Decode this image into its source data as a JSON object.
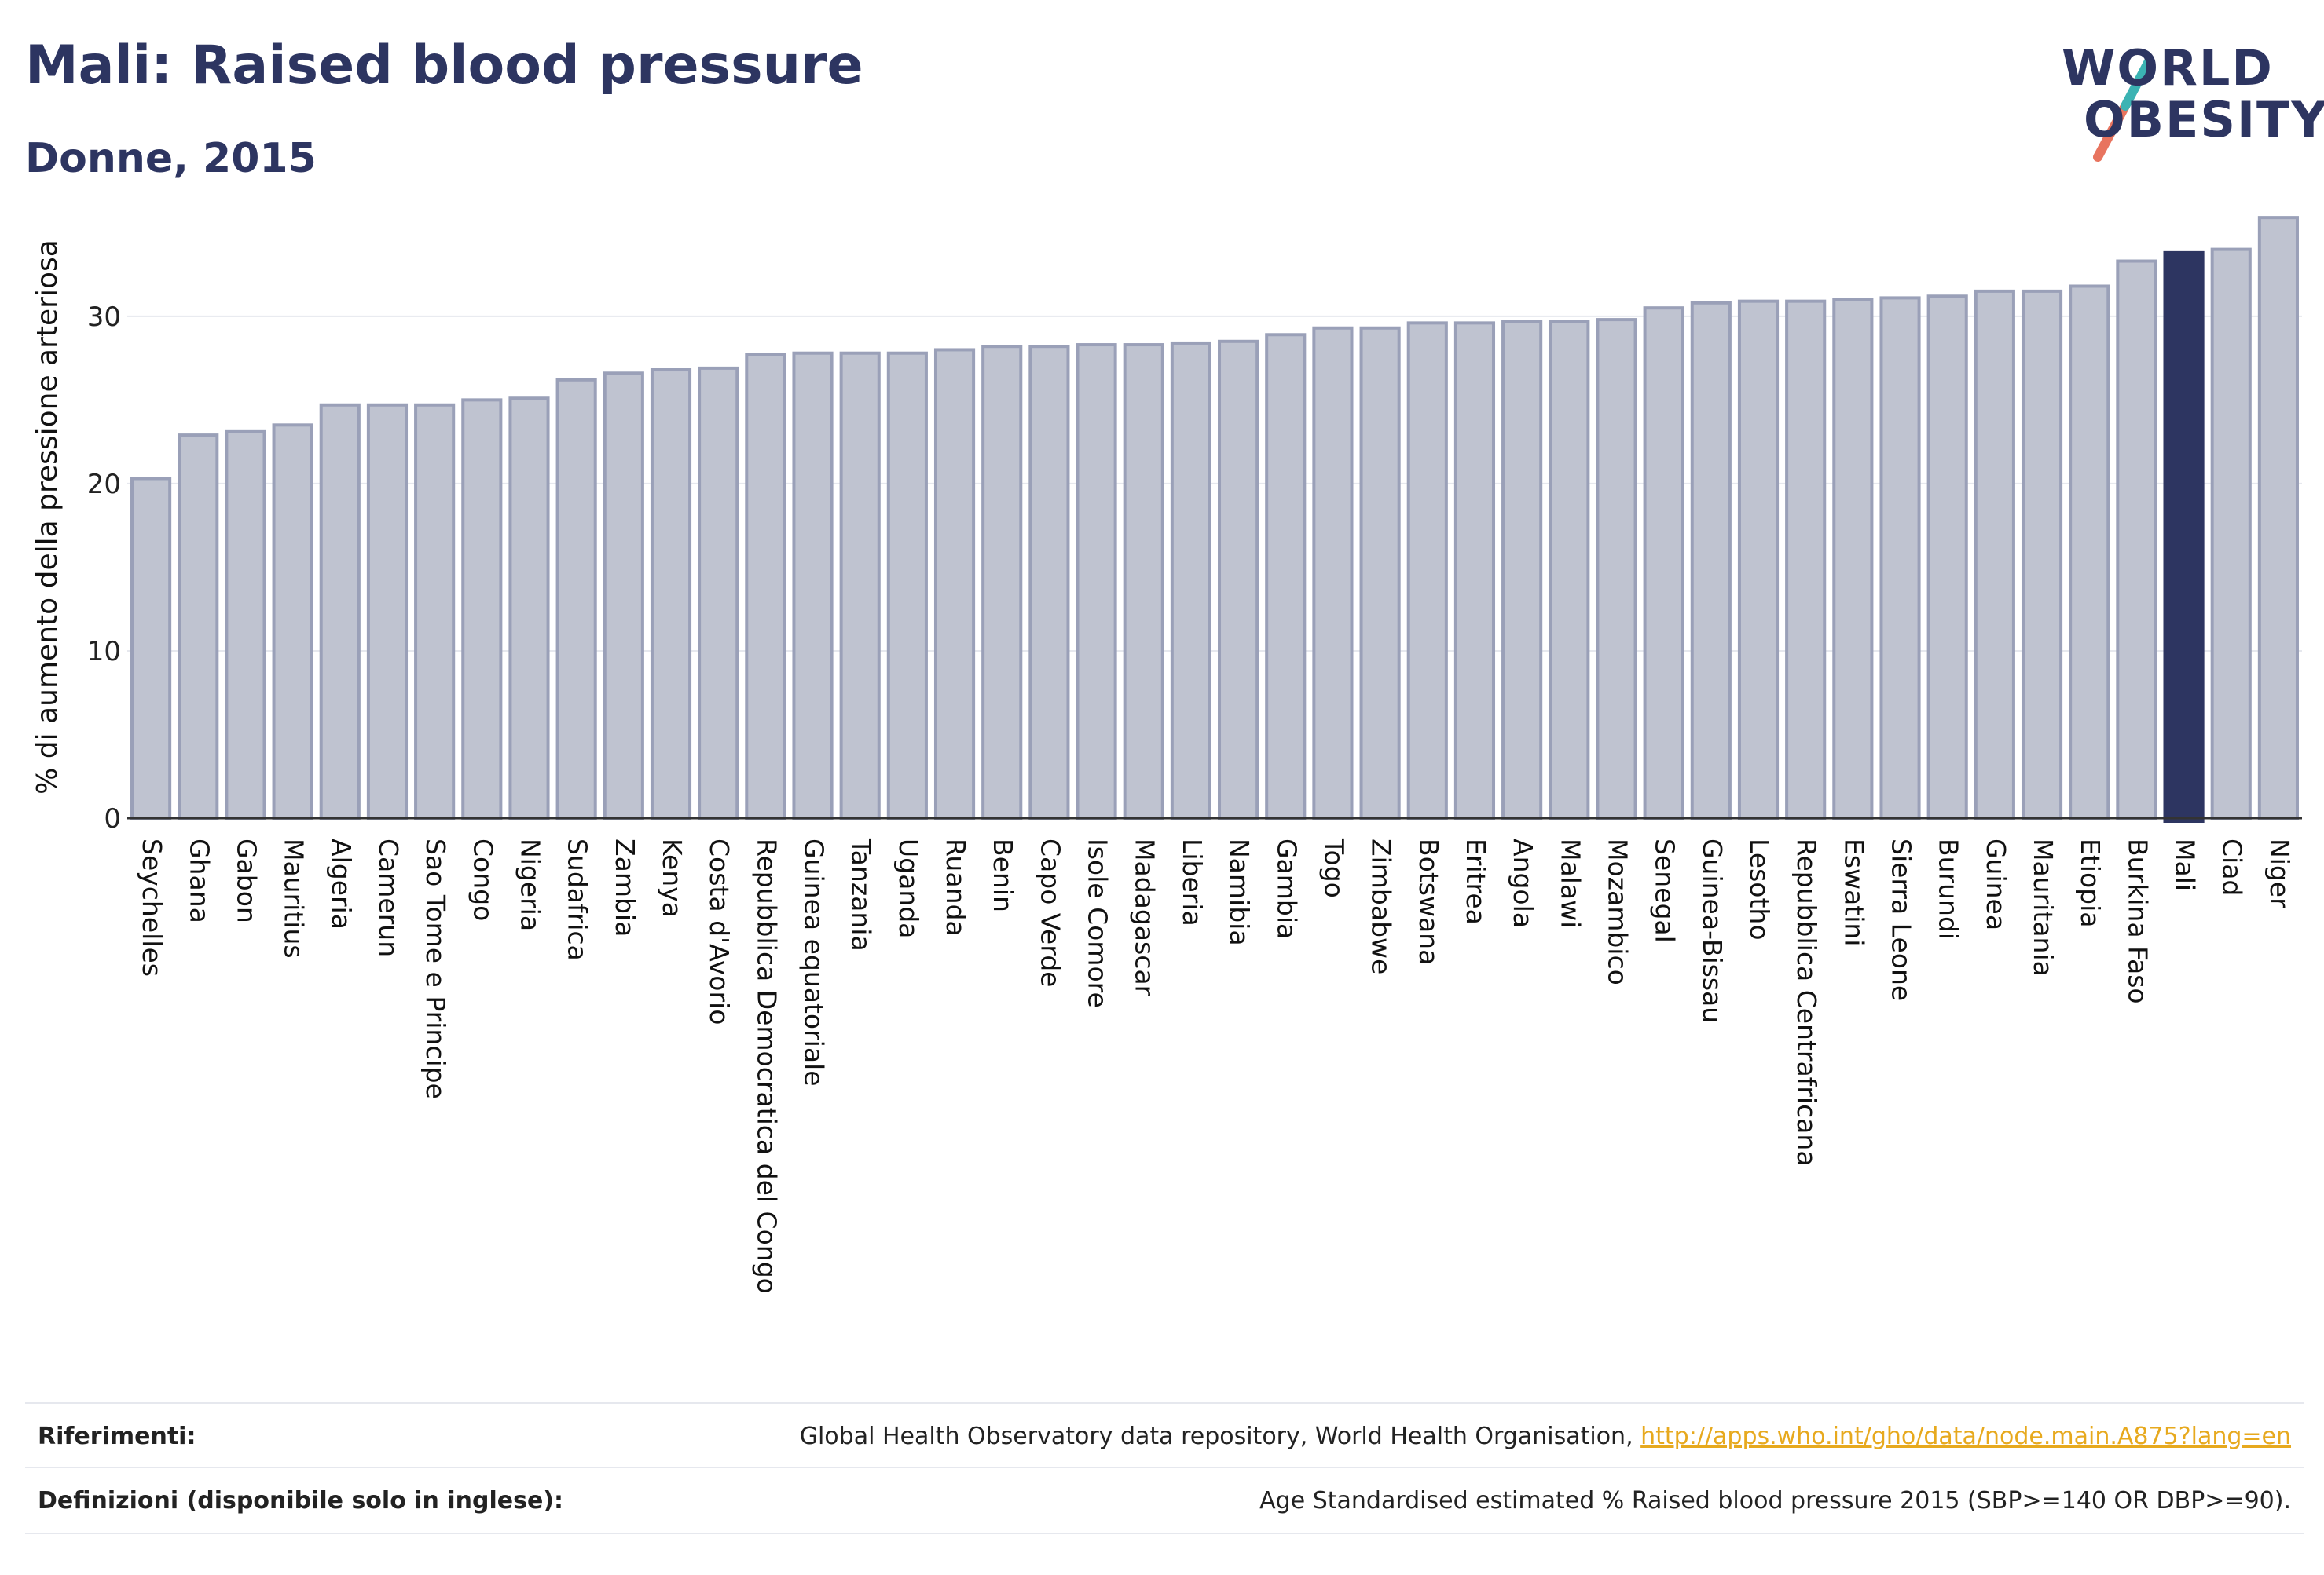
{
  "title": "Mali: Raised blood pressure",
  "subtitle": "Donne, 2015",
  "logo": {
    "line1": "WORLD",
    "line2": "OBESITY"
  },
  "colors": {
    "bar": "#bfc3d0",
    "bar_stroke": "#9aa0b8",
    "highlight": "#2d3561",
    "title": "#2d3561",
    "link": "#e7a91e"
  },
  "chart_data": {
    "type": "bar",
    "title": "Mali: Raised blood pressure",
    "subtitle": "Donne, 2015",
    "ylabel": "% di aumento della pressione arteriosa",
    "ylim": [
      0,
      36
    ],
    "yticks": [
      0,
      10,
      20,
      30
    ],
    "grid": true,
    "highlight": "Mali",
    "categories": [
      "Seychelles",
      "Ghana",
      "Gabon",
      "Mauritius",
      "Algeria",
      "Camerun",
      "Sao Tome e Principe",
      "Congo",
      "Nigeria",
      "Sudafrica",
      "Zambia",
      "Kenya",
      "Costa d'Avorio",
      "Repubblica Democratica del Congo",
      "Guinea equatoriale",
      "Tanzania",
      "Uganda",
      "Ruanda",
      "Benin",
      "Capo Verde",
      "Isole Comore",
      "Madagascar",
      "Liberia",
      "Namibia",
      "Gambia",
      "Togo",
      "Zimbabwe",
      "Botswana",
      "Eritrea",
      "Angola",
      "Malawi",
      "Mozambico",
      "Senegal",
      "Guinea-Bissau",
      "Lesotho",
      "Repubblica Centrafricana",
      "Eswatini",
      "Sierra Leone",
      "Burundi",
      "Guinea",
      "Mauritania",
      "Etiopia",
      "Burkina Faso",
      "Mali",
      "Ciad",
      "Niger"
    ],
    "values": [
      20.3,
      22.9,
      23.1,
      23.5,
      24.7,
      24.7,
      24.7,
      25.0,
      25.1,
      26.2,
      26.6,
      26.8,
      26.9,
      27.7,
      27.8,
      27.8,
      27.8,
      28.0,
      28.2,
      28.2,
      28.3,
      28.3,
      28.4,
      28.5,
      28.9,
      29.3,
      29.3,
      29.6,
      29.6,
      29.7,
      29.7,
      29.8,
      30.5,
      30.8,
      30.9,
      30.9,
      31.0,
      31.1,
      31.2,
      31.5,
      31.5,
      31.8,
      33.3,
      33.8,
      34.0,
      35.9
    ]
  },
  "footer": {
    "references_label": "Riferimenti:",
    "references_text": "Global Health Observatory data repository, World Health Organisation, ",
    "references_link": "http://apps.who.int/gho/data/node.main.A875?lang=en",
    "definitions_label": "Definizioni (disponibile solo in inglese):",
    "definitions_text": "Age Standardised estimated % Raised blood pressure 2015 (SBP>=140 OR DBP>=90)."
  }
}
